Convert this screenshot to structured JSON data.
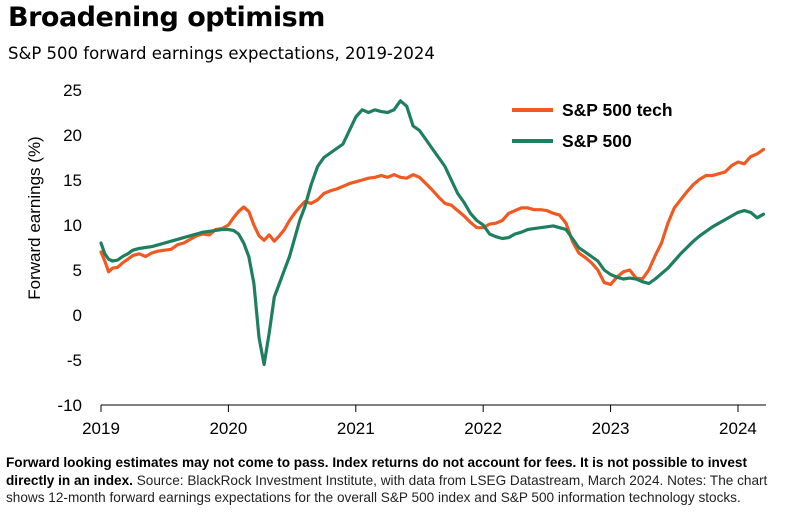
{
  "header": {
    "title": "Broadening optimism",
    "subtitle": "S&P 500 forward earnings expectations, 2019-2024"
  },
  "footer": {
    "disclaimer": "Forward looking estimates may not come to pass. Index returns do not account for fees. It is not possible to invest directly in an index.",
    "source": " Source: BlackRock Investment Institute, with data from LSEG Datastream, March 2024. Notes: The chart shows 12-month forward earnings expectations for the overall S&P 500 index and S&P 500 information technology stocks."
  },
  "chart_data": {
    "type": "line",
    "title": "Broadening optimism",
    "subtitle": "S&P 500 forward earnings expectations, 2019-2024",
    "xlabel": "",
    "ylabel": "Forward earnings (%)",
    "xlim": [
      2019.0,
      2024.22
    ],
    "ylim": [
      -10,
      25
    ],
    "yticks": [
      25,
      20,
      15,
      10,
      5,
      0,
      -5,
      -10
    ],
    "xticks": [
      "2019",
      "2020",
      "2021",
      "2022",
      "2023",
      "2024"
    ],
    "grid": false,
    "legend": "top-right",
    "series": [
      {
        "name": "S&P 500 tech",
        "color": "#f05a22",
        "x": [
          2019.0,
          2019.03,
          2019.06,
          2019.09,
          2019.13,
          2019.17,
          2019.21,
          2019.25,
          2019.3,
          2019.35,
          2019.4,
          2019.45,
          2019.5,
          2019.55,
          2019.6,
          2019.65,
          2019.7,
          2019.75,
          2019.8,
          2019.85,
          2019.9,
          2019.95,
          2020.0,
          2020.04,
          2020.08,
          2020.12,
          2020.16,
          2020.2,
          2020.24,
          2020.28,
          2020.32,
          2020.36,
          2020.4,
          2020.44,
          2020.48,
          2020.52,
          2020.56,
          2020.6,
          2020.65,
          2020.7,
          2020.75,
          2020.8,
          2020.85,
          2020.9,
          2020.95,
          2021.0,
          2021.05,
          2021.1,
          2021.15,
          2021.2,
          2021.25,
          2021.3,
          2021.35,
          2021.4,
          2021.45,
          2021.5,
          2021.55,
          2021.6,
          2021.65,
          2021.7,
          2021.75,
          2021.8,
          2021.85,
          2021.9,
          2021.95,
          2022.0,
          2022.05,
          2022.1,
          2022.15,
          2022.2,
          2022.25,
          2022.3,
          2022.35,
          2022.4,
          2022.45,
          2022.5,
          2022.55,
          2022.6,
          2022.65,
          2022.7,
          2022.75,
          2022.8,
          2022.85,
          2022.9,
          2022.95,
          2023.0,
          2023.05,
          2023.1,
          2023.15,
          2023.2,
          2023.25,
          2023.3,
          2023.35,
          2023.4,
          2023.45,
          2023.5,
          2023.55,
          2023.6,
          2023.65,
          2023.7,
          2023.75,
          2023.8,
          2023.85,
          2023.9,
          2023.95,
          2024.0,
          2024.05,
          2024.1,
          2024.15,
          2024.2
        ],
        "values": [
          7.0,
          6.0,
          4.8,
          5.2,
          5.3,
          5.8,
          6.2,
          6.6,
          6.8,
          6.5,
          6.9,
          7.1,
          7.2,
          7.3,
          7.8,
          8.0,
          8.4,
          8.8,
          9.0,
          8.9,
          9.5,
          9.6,
          10.0,
          10.8,
          11.5,
          12.0,
          11.5,
          10.0,
          8.8,
          8.3,
          8.9,
          8.2,
          8.8,
          9.5,
          10.5,
          11.3,
          12.0,
          12.6,
          12.4,
          12.8,
          13.5,
          13.8,
          14.0,
          14.3,
          14.6,
          14.8,
          15.0,
          15.2,
          15.3,
          15.5,
          15.3,
          15.6,
          15.3,
          15.2,
          15.6,
          15.3,
          14.6,
          13.9,
          13.1,
          12.4,
          12.2,
          11.6,
          11.0,
          10.3,
          9.7,
          9.7,
          10.1,
          10.2,
          10.5,
          11.3,
          11.6,
          11.9,
          11.9,
          11.7,
          11.7,
          11.6,
          11.3,
          11.1,
          10.2,
          8.2,
          6.9,
          6.4,
          5.8,
          5.0,
          3.6,
          3.4,
          4.2,
          4.8,
          5.0,
          4.1,
          4.0,
          5.0,
          6.6,
          8.0,
          10.2,
          11.9,
          12.8,
          13.7,
          14.5,
          15.1,
          15.5,
          15.5,
          15.7,
          15.9,
          16.6,
          17.0,
          16.8,
          17.6,
          17.9,
          18.4
        ]
      },
      {
        "name": "S&P 500",
        "color": "#1e7f5e",
        "x": [
          2019.0,
          2019.03,
          2019.06,
          2019.09,
          2019.13,
          2019.17,
          2019.21,
          2019.25,
          2019.3,
          2019.35,
          2019.4,
          2019.45,
          2019.5,
          2019.55,
          2019.6,
          2019.65,
          2019.7,
          2019.75,
          2019.8,
          2019.85,
          2019.9,
          2019.95,
          2020.0,
          2020.04,
          2020.08,
          2020.12,
          2020.16,
          2020.2,
          2020.24,
          2020.28,
          2020.32,
          2020.36,
          2020.4,
          2020.44,
          2020.48,
          2020.52,
          2020.56,
          2020.6,
          2020.65,
          2020.7,
          2020.75,
          2020.8,
          2020.85,
          2020.9,
          2020.95,
          2021.0,
          2021.05,
          2021.1,
          2021.15,
          2021.2,
          2021.25,
          2021.3,
          2021.35,
          2021.4,
          2021.45,
          2021.5,
          2021.55,
          2021.6,
          2021.65,
          2021.7,
          2021.75,
          2021.8,
          2021.85,
          2021.9,
          2021.95,
          2022.0,
          2022.05,
          2022.1,
          2022.15,
          2022.2,
          2022.25,
          2022.3,
          2022.35,
          2022.4,
          2022.45,
          2022.5,
          2022.55,
          2022.6,
          2022.65,
          2022.7,
          2022.75,
          2022.8,
          2022.85,
          2022.9,
          2022.95,
          2023.0,
          2023.05,
          2023.1,
          2023.15,
          2023.2,
          2023.25,
          2023.3,
          2023.35,
          2023.4,
          2023.45,
          2023.5,
          2023.55,
          2023.6,
          2023.65,
          2023.7,
          2023.75,
          2023.8,
          2023.85,
          2023.9,
          2023.95,
          2024.0,
          2024.05,
          2024.1,
          2024.15,
          2024.2
        ],
        "values": [
          8.0,
          6.8,
          6.2,
          6.0,
          6.1,
          6.5,
          6.8,
          7.2,
          7.4,
          7.5,
          7.6,
          7.8,
          8.0,
          8.2,
          8.4,
          8.6,
          8.8,
          9.0,
          9.2,
          9.3,
          9.4,
          9.5,
          9.5,
          9.4,
          9.0,
          8.0,
          6.5,
          3.5,
          -2.5,
          -5.5,
          -2.0,
          2.0,
          3.5,
          5.0,
          6.5,
          8.5,
          10.5,
          12.0,
          14.5,
          16.5,
          17.5,
          18.0,
          18.5,
          19.0,
          20.5,
          22.0,
          22.8,
          22.5,
          22.8,
          22.6,
          22.5,
          22.8,
          23.8,
          23.2,
          21.0,
          20.5,
          19.5,
          18.5,
          17.5,
          16.5,
          15.0,
          13.5,
          12.5,
          11.3,
          10.5,
          10.0,
          9.0,
          8.7,
          8.5,
          8.6,
          9.0,
          9.2,
          9.5,
          9.6,
          9.7,
          9.8,
          9.9,
          9.7,
          9.5,
          8.5,
          7.5,
          7.0,
          6.5,
          6.0,
          5.0,
          4.5,
          4.2,
          4.0,
          4.1,
          4.0,
          3.7,
          3.5,
          4.0,
          4.6,
          5.2,
          6.0,
          6.8,
          7.5,
          8.2,
          8.8,
          9.3,
          9.8,
          10.2,
          10.6,
          11.0,
          11.4,
          11.6,
          11.4,
          10.8,
          11.2
        ]
      }
    ]
  }
}
